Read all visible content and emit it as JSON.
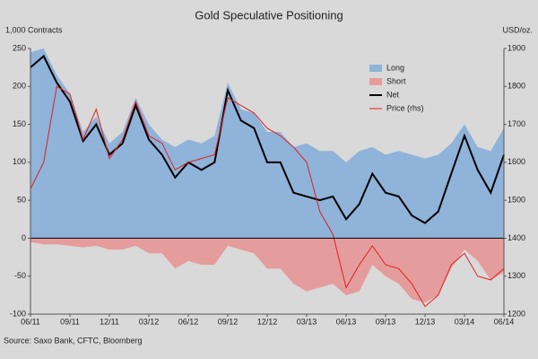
{
  "chart_data": {
    "type": "area-line",
    "title": "Gold Speculative Positioning",
    "y_label": "1,000 Contracts",
    "y2_label": "USD/oz.",
    "source": "Source: Saxo Bank, CFTC, Bloomberg",
    "categories": [
      "06/11",
      null,
      null,
      "09/11",
      null,
      null,
      "12/11",
      null,
      null,
      "03/12",
      null,
      null,
      "06/12",
      null,
      null,
      "09/12",
      null,
      null,
      "12/12",
      null,
      null,
      "03/13",
      null,
      null,
      "06/13",
      null,
      null,
      "09/13",
      null,
      null,
      "12/13",
      null,
      null,
      "03/14",
      null,
      null,
      "06/14"
    ],
    "series": [
      {
        "name": "Long",
        "kind": "area",
        "color": "#8fb3d9",
        "values": [
          245,
          250,
          215,
          190,
          140,
          160,
          125,
          140,
          185,
          150,
          130,
          120,
          130,
          125,
          135,
          205,
          170,
          165,
          140,
          140,
          120,
          125,
          115,
          115,
          100,
          115,
          120,
          110,
          115,
          110,
          105,
          110,
          125,
          150,
          120,
          115,
          145
        ]
      },
      {
        "name": "Short",
        "kind": "area",
        "color": "#e59c9c",
        "values": [
          -5,
          -8,
          -8,
          -10,
          -12,
          -10,
          -15,
          -15,
          -10,
          -20,
          -20,
          -40,
          -30,
          -35,
          -35,
          -10,
          -15,
          -20,
          -40,
          -40,
          -60,
          -70,
          -65,
          -60,
          -75,
          -70,
          -35,
          -50,
          -60,
          -80,
          -85,
          -75,
          -40,
          -15,
          -30,
          -55,
          -45
        ]
      },
      {
        "name": "Net",
        "kind": "line",
        "color": "#000000",
        "values": [
          225,
          240,
          205,
          180,
          128,
          150,
          110,
          125,
          175,
          130,
          110,
          80,
          100,
          90,
          100,
          195,
          155,
          145,
          100,
          100,
          60,
          55,
          50,
          55,
          25,
          45,
          85,
          60,
          55,
          30,
          20,
          35,
          85,
          135,
          90,
          60,
          110
        ]
      },
      {
        "name": "Price (rhs)",
        "kind": "line",
        "color": "#e02020",
        "axis": "y2",
        "values": [
          1530,
          1600,
          1800,
          1780,
          1660,
          1740,
          1610,
          1660,
          1760,
          1670,
          1650,
          1580,
          1600,
          1610,
          1620,
          1770,
          1750,
          1730,
          1690,
          1670,
          1640,
          1600,
          1470,
          1410,
          1270,
          1330,
          1380,
          1330,
          1320,
          1280,
          1220,
          1250,
          1330,
          1360,
          1300,
          1290,
          1320
        ]
      }
    ],
    "ylim": [
      -100,
      250
    ],
    "yticks": [
      -100,
      -50,
      0,
      50,
      100,
      150,
      200,
      250
    ],
    "y2lim": [
      1200,
      1900
    ],
    "y2ticks": [
      1200,
      1300,
      1400,
      1500,
      1600,
      1700,
      1800,
      1900
    ],
    "legend": "upper right",
    "grid": false
  }
}
